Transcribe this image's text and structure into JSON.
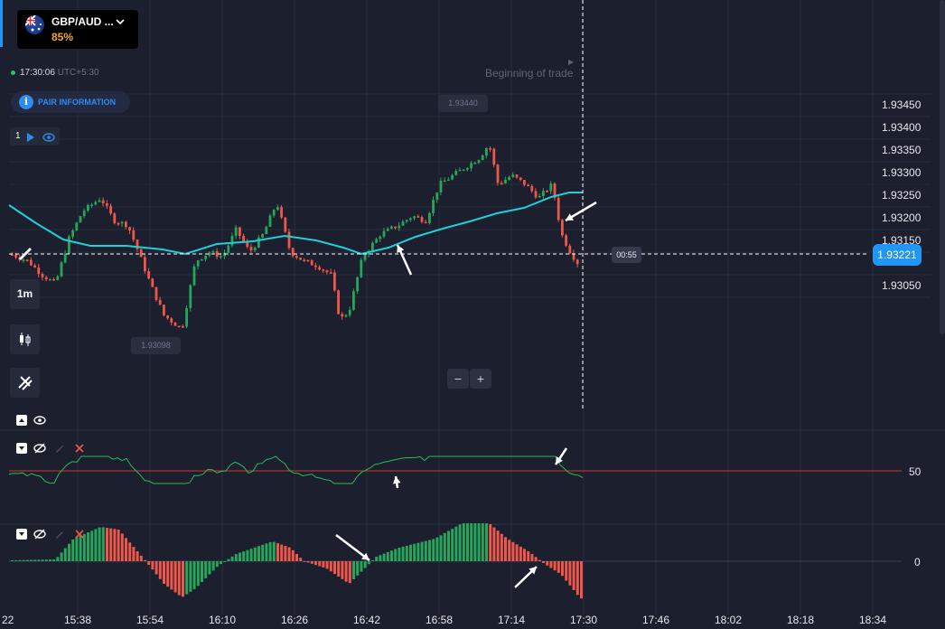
{
  "asset": {
    "name": "GBP/AUD ...",
    "payout": "85%",
    "flag_icon": "uk-australia-flag-icon",
    "dropdown_icon": "chevron-down-icon"
  },
  "clock": {
    "time": "17:30:06",
    "timezone": "UTC+5:30"
  },
  "pair_info_label": "PAIR INFORMATION",
  "indicator_controls": {
    "count": "1"
  },
  "toolbar": {
    "timeframe": "1m"
  },
  "price_axis": {
    "ticks": [
      "1.93450",
      "1.93400",
      "1.93350",
      "1.93300",
      "1.93250",
      "1.93200",
      "1.93150",
      "1.93050"
    ],
    "current_price": "1.93221"
  },
  "countdown": "00:55",
  "trade_marker_label": "Beginning of trade",
  "high_label": "1.93440",
  "low_label": "1.93098",
  "zoom": {
    "minus": "−",
    "plus": "+"
  },
  "rsi_pane": {
    "level_label": "50"
  },
  "osc_pane": {
    "level_label": "0"
  },
  "time_axis": [
    "22",
    "15:38",
    "15:54",
    "16:10",
    "16:26",
    "16:42",
    "16:58",
    "17:14",
    "17:30",
    "17:46",
    "18:02",
    "18:18",
    "18:34"
  ],
  "colors": {
    "background": "#1c1f2d",
    "bull": "#26a65b",
    "bear": "#f0564a",
    "moving_average": "#1fd0d8",
    "rsi_line": "#2eb85c",
    "rsi_level": "#a83434",
    "accent": "#2196f3",
    "payout": "#f5a623"
  }
}
